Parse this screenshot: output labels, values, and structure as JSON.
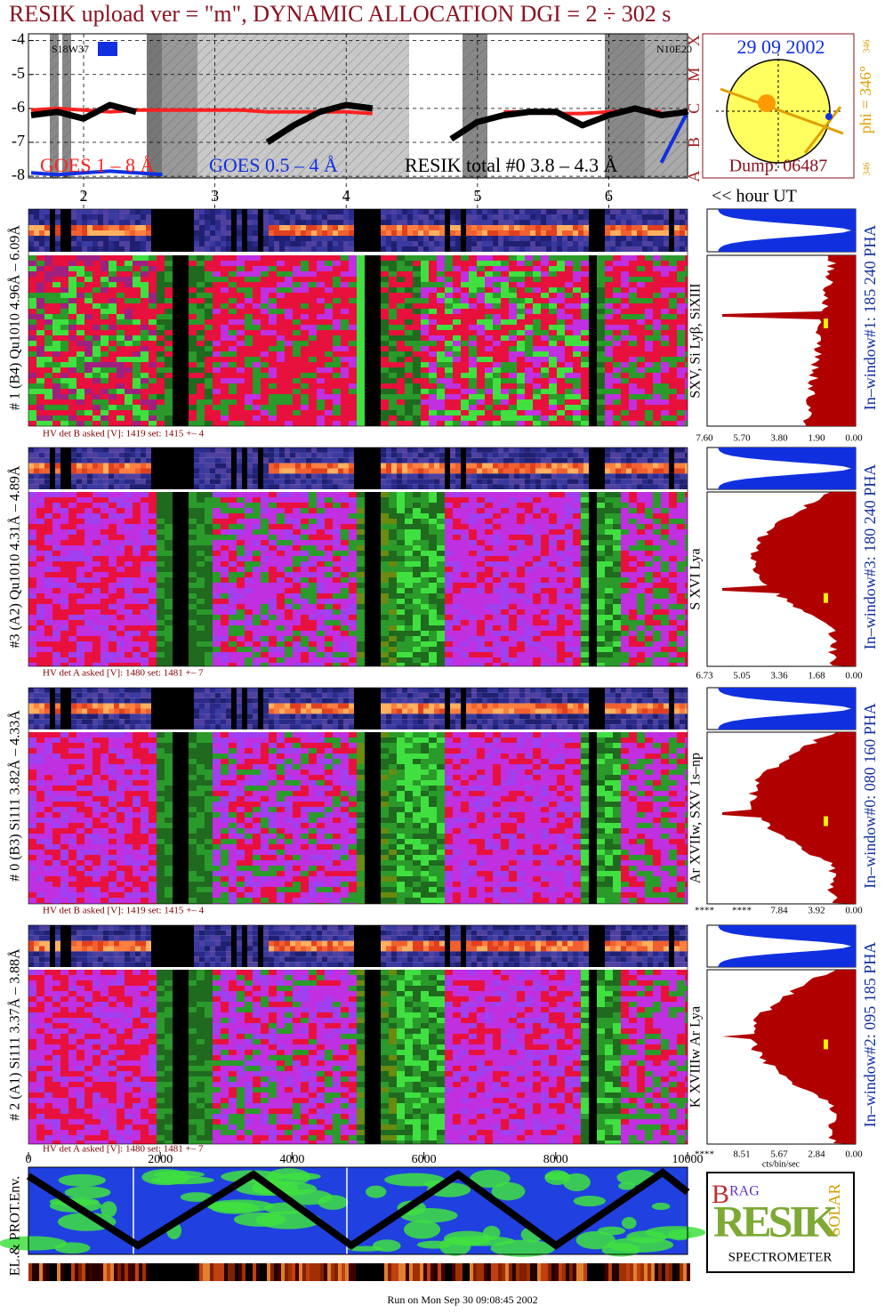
{
  "header": {
    "title": "RESIK upload ver = \"m\", DYNAMIC ALLOCATION  DGI =   2 ÷ 302 s"
  },
  "chart_data": {
    "type": "line",
    "x": [
      1.6,
      1.8,
      2.0,
      2.2,
      2.4,
      2.6,
      2.8,
      3.0,
      3.2,
      3.4,
      3.6,
      3.8,
      4.0,
      4.2,
      4.4,
      4.6,
      4.8,
      5.0,
      5.2,
      5.4,
      5.6,
      5.8,
      6.0,
      6.2,
      6.4,
      6.6
    ],
    "series": [
      {
        "name": "GOES 1 – 8 Å",
        "color": "#ff2020",
        "values": [
          -6.05,
          -6.0,
          -6.05,
          -6.1,
          -6.05,
          -6.05,
          -6.05,
          -6.05,
          -6.05,
          -6.1,
          -6.1,
          -6.1,
          -6.1,
          -6.15,
          null,
          null,
          null,
          null,
          -6.1,
          -6.1,
          -6.15,
          -6.15,
          -6.1,
          -6.05,
          -6.1,
          null
        ]
      },
      {
        "name": "GOES 0.5 – 4 Å",
        "color": "#1030e0",
        "values": [
          -7.9,
          -7.95,
          -7.9,
          -7.85,
          -7.9,
          -7.95,
          null,
          null,
          null,
          null,
          null,
          null,
          null,
          null,
          null,
          null,
          null,
          null,
          null,
          null,
          null,
          null,
          null,
          null,
          -7.6,
          -6.1
        ]
      },
      {
        "name": "RESIK total #0  3.8 – 4.3 Å",
        "color": "#000000",
        "values": [
          -6.2,
          -6.1,
          -6.3,
          -5.9,
          -6.1,
          null,
          null,
          null,
          null,
          -7.0,
          -6.5,
          -6.1,
          -5.9,
          -6.0,
          null,
          null,
          -6.9,
          -6.4,
          -6.2,
          -6.1,
          -6.1,
          -6.5,
          -6.2,
          -6.0,
          -6.2,
          -6.1
        ]
      }
    ],
    "xlim": [
      1.58,
      6.6
    ],
    "xticks": [
      2,
      3,
      4,
      5,
      6
    ],
    "xlabel": "<< hour UT",
    "ylim": [
      -8.05,
      -3.8
    ],
    "yticks": [
      -4,
      -5,
      -6,
      -7,
      -8
    ],
    "grid": true,
    "flare_classes": [
      "A",
      "B",
      "C",
      "M",
      "X"
    ],
    "annotations": [
      "S18W37",
      "N10E20"
    ]
  },
  "sun": {
    "date": "29 09 2002",
    "phi": "phi = 346°",
    "top": "346",
    "bottom": "346",
    "dump": "Dump: 06487"
  },
  "panels": [
    {
      "left": "# 1 (B4) Qu1010 4.96Å – 6.09Å",
      "line": "SXV, Si Lyβ, SiXIII",
      "window": "In–window#1:  185 240 PHA",
      "hv": "HV det B asked [V]:  1419 set:  1415 +–    4",
      "hist_ticks": [
        "7.60",
        "5.70",
        "3.80",
        "1.90",
        "0.00"
      ]
    },
    {
      "left": "#3 (A2) Qu1010  4.31Å – 4.89Å",
      "line": "S XVI Lya",
      "window": "In–window#3:  180 240 PHA",
      "hv": "HV det A asked [V]:  1480 set:  1481 +–    7",
      "hist_ticks": [
        "6.73",
        "5.05",
        "3.36",
        "1.68",
        "0.00"
      ]
    },
    {
      "left": "# 0 (B3) Si111  3.82Å – 4.33Å",
      "line": "Ar XVIIw,  SXV 1s–np",
      "window": "In–window#0:  080 160 PHA",
      "hv": "HV det B asked [V]:  1419 set:  1415 +–    4",
      "hist_ticks": [
        "****",
        "****",
        "7.84",
        "3.92",
        "0.00"
      ]
    },
    {
      "left": "# 2 (A1) Si111  3.37Å – 3.88Å",
      "line": "K XVIIIw  Ar Lya",
      "window": "In–window#2:  095 185 PHA",
      "hv": "HV det A asked [V]:  1480 set:  1481 +–    7",
      "hist_ticks": [
        "****",
        "8.51",
        "5.67",
        "2.84",
        "0.00"
      ]
    }
  ],
  "hist_unit": "cts/bin/sec",
  "bottom_axis": {
    "xlim": [
      0,
      10000
    ],
    "xticks": [
      0,
      2000,
      4000,
      6000,
      8000,
      10000
    ]
  },
  "env_label": "EL.& PROT.Env.",
  "logo": {
    "b": "B",
    "rag": "RAG",
    "resik": "RESIK",
    "solar": "SOLAR",
    "name": "SPECTROMETER"
  },
  "footer": "Run on Mon Sep 30 09:08:45 2002"
}
